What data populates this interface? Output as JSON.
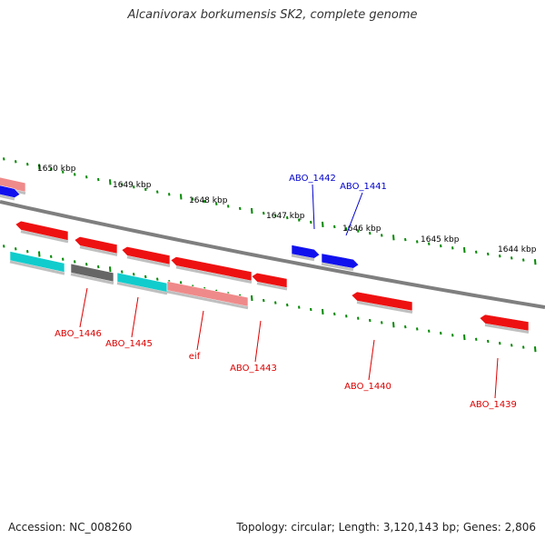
{
  "title": "Alcanivorax borkumensis SK2, complete genome",
  "footer": {
    "accession": "Accession: NC_008260",
    "summary": "Topology: circular; Length: 3,120,143 bp; Genes: 2,806"
  },
  "colors": {
    "backbone": "#7f7f7f",
    "tick": "#008800",
    "forward_label": "#0000cc",
    "reverse_label": "#dd0000",
    "feature_red": "#ee1111",
    "feature_pink": "#ef8a8a",
    "feature_blue": "#1111ee",
    "feature_cyan": "#11cccc",
    "feature_gray": "#666666"
  },
  "kbp_labels": [
    "1650 kbp",
    "1649 kbp",
    "1648 kbp",
    "1647 kbp",
    "1646 kbp",
    "1645 kbp",
    "1644 kbp"
  ],
  "gene_labels": {
    "forward": [
      "ABO_1442",
      "ABO_1441"
    ],
    "reverse": [
      "ABO_1446",
      "ABO_1445",
      "eif",
      "ABO_1443",
      "ABO_1440",
      "ABO_1439"
    ]
  },
  "feature_colors": [
    "pink",
    "blue",
    "red",
    "red",
    "red",
    "red",
    "blue",
    "blue",
    "cyan",
    "gray",
    "cyan",
    "pink",
    "red",
    "red",
    "red"
  ]
}
